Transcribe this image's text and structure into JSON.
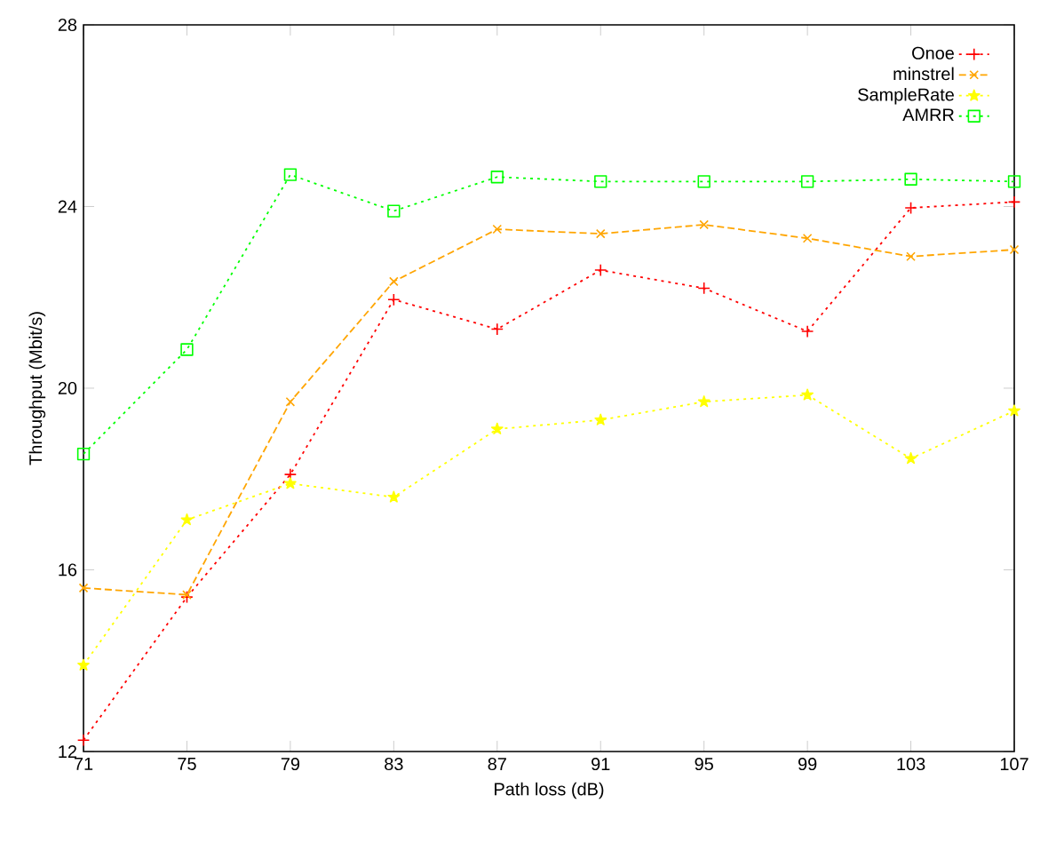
{
  "chart_data": {
    "type": "line",
    "xlabel": "Path loss (dB)",
    "ylabel": "Throughput (Mbit/s)",
    "x": [
      71,
      75,
      79,
      83,
      87,
      91,
      95,
      99,
      103,
      107
    ],
    "xlim": [
      71,
      107
    ],
    "xticks": [
      71,
      75,
      79,
      83,
      87,
      91,
      95,
      99,
      103,
      107
    ],
    "ylim": [
      12,
      28
    ],
    "yticks": [
      12,
      16,
      20,
      24,
      28
    ],
    "grid": false,
    "legend": "top right",
    "series": [
      {
        "name": "Onoe",
        "color": "#ff0000",
        "marker": "plus",
        "line_style": "dotted",
        "values": [
          12.25,
          15.4,
          18.1,
          21.95,
          21.3,
          22.6,
          22.2,
          21.25,
          23.97,
          24.1
        ]
      },
      {
        "name": "minstrel",
        "color": "#ffa500",
        "marker": "cross",
        "line_style": "dashed",
        "values": [
          15.6,
          15.45,
          19.7,
          22.35,
          23.5,
          23.4,
          23.6,
          23.3,
          22.9,
          23.05
        ]
      },
      {
        "name": "SampleRate",
        "color": "#ffff00",
        "marker": "star",
        "line_style": "dotted",
        "values": [
          13.9,
          17.1,
          17.9,
          17.6,
          19.1,
          19.3,
          19.7,
          19.85,
          18.45,
          19.5
        ]
      },
      {
        "name": "AMRR",
        "color": "#00ff00",
        "marker": "square",
        "line_style": "dotted",
        "values": [
          18.55,
          20.85,
          24.7,
          23.9,
          24.65,
          24.55,
          24.55,
          24.55,
          24.6,
          24.55
        ]
      }
    ]
  }
}
